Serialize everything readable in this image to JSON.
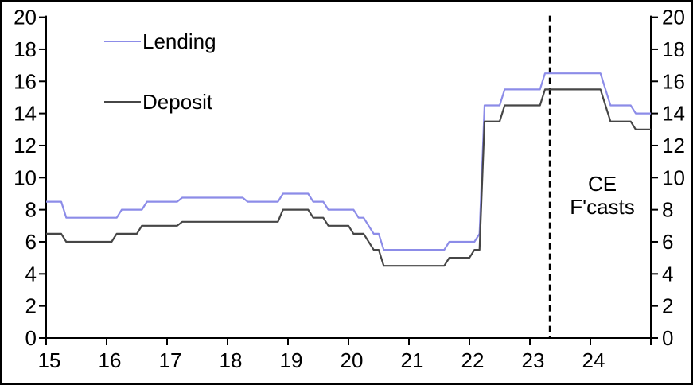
{
  "chart_data": {
    "type": "line",
    "title": "",
    "xlabel": "",
    "ylabel": "",
    "x_ticks": [
      15,
      16,
      17,
      18,
      19,
      20,
      21,
      22,
      23,
      24
    ],
    "y_ticks": [
      0,
      2,
      4,
      6,
      8,
      10,
      12,
      14,
      16,
      18,
      20
    ],
    "xlim": [
      15,
      25
    ],
    "ylim": [
      0,
      20
    ],
    "grid": false,
    "y_axis_sides": "both",
    "legend_position": "top-left",
    "forecast_divider_x": 23.33,
    "series": [
      {
        "name": "Lending",
        "color": "#8c8ce8",
        "points": [
          [
            15.0,
            8.5
          ],
          [
            15.25,
            8.5
          ],
          [
            15.333,
            7.5
          ],
          [
            16.167,
            7.5
          ],
          [
            16.25,
            8.0
          ],
          [
            16.583,
            8.0
          ],
          [
            16.667,
            8.5
          ],
          [
            17.167,
            8.5
          ],
          [
            17.25,
            8.75
          ],
          [
            18.25,
            8.75
          ],
          [
            18.333,
            8.5
          ],
          [
            18.833,
            8.5
          ],
          [
            18.917,
            9.0
          ],
          [
            19.333,
            9.0
          ],
          [
            19.417,
            8.5
          ],
          [
            19.583,
            8.5
          ],
          [
            19.667,
            8.0
          ],
          [
            20.083,
            8.0
          ],
          [
            20.167,
            7.5
          ],
          [
            20.25,
            7.5
          ],
          [
            20.417,
            6.5
          ],
          [
            20.5,
            6.5
          ],
          [
            20.583,
            5.5
          ],
          [
            21.583,
            5.5
          ],
          [
            21.667,
            6.0
          ],
          [
            22.083,
            6.0
          ],
          [
            22.167,
            6.5
          ],
          [
            22.25,
            14.5
          ],
          [
            22.5,
            14.5
          ],
          [
            22.583,
            15.5
          ],
          [
            23.167,
            15.5
          ],
          [
            23.25,
            16.5
          ],
          [
            24.167,
            16.5
          ],
          [
            24.333,
            14.5
          ],
          [
            24.667,
            14.5
          ],
          [
            24.75,
            14.0
          ],
          [
            25.0,
            14.0
          ]
        ]
      },
      {
        "name": "Deposit",
        "color": "#464646",
        "points": [
          [
            15.0,
            6.5
          ],
          [
            15.25,
            6.5
          ],
          [
            15.333,
            6.0
          ],
          [
            16.083,
            6.0
          ],
          [
            16.167,
            6.5
          ],
          [
            16.5,
            6.5
          ],
          [
            16.583,
            7.0
          ],
          [
            17.167,
            7.0
          ],
          [
            17.25,
            7.25
          ],
          [
            18.833,
            7.25
          ],
          [
            18.917,
            8.0
          ],
          [
            19.333,
            8.0
          ],
          [
            19.417,
            7.5
          ],
          [
            19.583,
            7.5
          ],
          [
            19.667,
            7.0
          ],
          [
            20.0,
            7.0
          ],
          [
            20.083,
            6.5
          ],
          [
            20.25,
            6.5
          ],
          [
            20.417,
            5.5
          ],
          [
            20.5,
            5.5
          ],
          [
            20.583,
            4.5
          ],
          [
            21.583,
            4.5
          ],
          [
            21.667,
            5.0
          ],
          [
            22.0,
            5.0
          ],
          [
            22.083,
            5.5
          ],
          [
            22.167,
            5.5
          ],
          [
            22.25,
            13.5
          ],
          [
            22.5,
            13.5
          ],
          [
            22.583,
            14.5
          ],
          [
            23.167,
            14.5
          ],
          [
            23.25,
            15.5
          ],
          [
            24.167,
            15.5
          ],
          [
            24.333,
            13.5
          ],
          [
            24.667,
            13.5
          ],
          [
            24.75,
            13.0
          ],
          [
            25.0,
            13.0
          ]
        ]
      }
    ]
  },
  "legend": {
    "items": [
      {
        "label": "Lending",
        "color": "#8c8ce8"
      },
      {
        "label": "Deposit",
        "color": "#464646"
      }
    ]
  },
  "annotation": {
    "line1": "CE",
    "line2": "F'casts"
  },
  "colors": {
    "axis": "#000000",
    "text": "#000000",
    "background": "#ffffff",
    "forecast_divider": "#000000"
  }
}
